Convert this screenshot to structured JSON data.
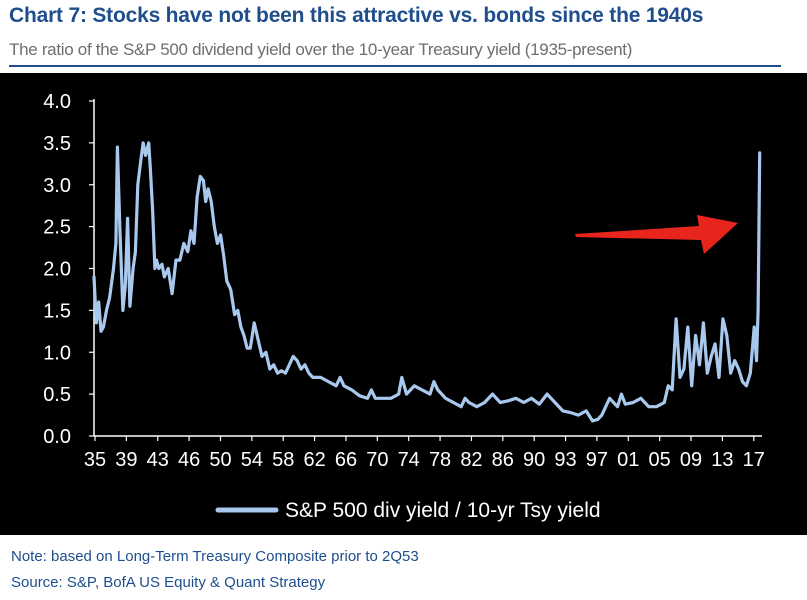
{
  "title": "Chart 7: Stocks have not been this attractive vs. bonds since the 1940s",
  "subtitle": "The ratio of the S&P 500 dividend yield over the 10-year Treasury yield (1935-present)",
  "notes": {
    "note": "Note: based on Long-Term Treasury Composite prior to 2Q53",
    "source": "Source: S&P, BofA US Equity & Quant Strategy"
  },
  "colors": {
    "background": "#000000",
    "series": "#a9c8ee",
    "arrow": "#e8251d",
    "title": "#1f4e8c"
  },
  "chart_data": {
    "type": "line",
    "title": "Chart 7: Stocks have not been this attractive vs. bonds since the 1940s",
    "xlabel": "",
    "ylabel": "",
    "xlim": [
      1935,
      2020.5
    ],
    "ylim": [
      0,
      4
    ],
    "y_ticks": [
      "0.0",
      "0.5",
      "1.0",
      "1.5",
      "2.0",
      "2.5",
      "3.0",
      "3.5",
      "4.0"
    ],
    "x_ticks": [
      "35",
      "39",
      "43",
      "46",
      "50",
      "54",
      "58",
      "62",
      "66",
      "70",
      "74",
      "78",
      "82",
      "86",
      "90",
      "93",
      "97",
      "01",
      "05",
      "09",
      "13",
      "17"
    ],
    "legend_position": "bottom",
    "annotation": "red arrow pointing to latest value",
    "series": [
      {
        "name": "S&P 500 div yield / 10-yr Tsy yield",
        "x": [
          1935,
          1935.3,
          1935.6,
          1935.9,
          1936.2,
          1936.6,
          1937,
          1937.5,
          1937.8,
          1938,
          1938.3,
          1938.7,
          1939,
          1939.3,
          1939.6,
          1940,
          1940.3,
          1940.6,
          1941,
          1941.3,
          1941.6,
          1942,
          1942.2,
          1942.5,
          1942.8,
          1943,
          1943.3,
          1943.7,
          1944,
          1944.5,
          1945,
          1945.5,
          1946,
          1946.5,
          1947,
          1947.4,
          1947.8,
          1948.2,
          1948.6,
          1949,
          1949.3,
          1949.6,
          1950,
          1950.4,
          1950.8,
          1951.2,
          1951.6,
          1952,
          1952.5,
          1953,
          1953.4,
          1953.8,
          1954.2,
          1954.6,
          1955,
          1955.5,
          1956,
          1956.5,
          1957,
          1957.5,
          1958,
          1958.5,
          1959,
          1959.5,
          1960,
          1960.5,
          1961,
          1961.5,
          1962,
          1962.5,
          1963,
          1964,
          1965,
          1966,
          1966.5,
          1967,
          1968,
          1969,
          1970,
          1970.5,
          1971,
          1972,
          1973,
          1974,
          1974.4,
          1975,
          1976,
          1977,
          1978,
          1978.5,
          1979,
          1980,
          1981,
          1982,
          1982.5,
          1983,
          1984,
          1985,
          1986,
          1987,
          1988,
          1989,
          1990,
          1991,
          1992,
          1993,
          1994,
          1995,
          1996,
          1997,
          1998,
          1998.8,
          1999.5,
          2000,
          2001,
          2002,
          2002.5,
          2003,
          2004,
          2005,
          2006,
          2007,
          2008,
          2008.5,
          2009,
          2009.5,
          2010,
          2010.5,
          2011,
          2011.5,
          2012,
          2012.5,
          2013,
          2013.5,
          2014,
          2014.5,
          2015,
          2015.5,
          2016,
          2016.5,
          2017,
          2017.5,
          2018,
          2018.5,
          2019,
          2019.5,
          2019.8,
          2020,
          2020.2
        ],
        "values": [
          1.9,
          1.35,
          1.6,
          1.25,
          1.3,
          1.5,
          1.65,
          2.0,
          2.3,
          3.45,
          2.5,
          1.5,
          1.8,
          2.6,
          1.55,
          2.0,
          2.2,
          3.0,
          3.3,
          3.5,
          3.35,
          3.5,
          3.2,
          2.7,
          2.0,
          2.1,
          2.0,
          2.05,
          1.9,
          2.0,
          1.7,
          2.1,
          2.1,
          2.3,
          2.2,
          2.45,
          2.3,
          2.85,
          3.1,
          3.05,
          2.8,
          2.95,
          2.8,
          2.5,
          2.3,
          2.4,
          2.15,
          1.85,
          1.75,
          1.45,
          1.5,
          1.3,
          1.2,
          1.05,
          1.05,
          1.35,
          1.15,
          0.95,
          1.0,
          0.8,
          0.85,
          0.75,
          0.78,
          0.75,
          0.85,
          0.95,
          0.9,
          0.8,
          0.85,
          0.75,
          0.7,
          0.7,
          0.65,
          0.6,
          0.7,
          0.6,
          0.55,
          0.48,
          0.45,
          0.55,
          0.45,
          0.45,
          0.45,
          0.5,
          0.7,
          0.5,
          0.6,
          0.55,
          0.5,
          0.65,
          0.55,
          0.45,
          0.4,
          0.35,
          0.45,
          0.4,
          0.35,
          0.4,
          0.5,
          0.4,
          0.42,
          0.45,
          0.4,
          0.45,
          0.38,
          0.5,
          0.4,
          0.3,
          0.28,
          0.25,
          0.3,
          0.18,
          0.2,
          0.25,
          0.45,
          0.35,
          0.5,
          0.38,
          0.4,
          0.45,
          0.35,
          0.35,
          0.4,
          0.6,
          0.55,
          1.4,
          0.7,
          0.8,
          1.3,
          0.6,
          1.2,
          0.85,
          1.35,
          0.75,
          0.95,
          1.1,
          0.7,
          1.4,
          1.2,
          0.75,
          0.9,
          0.8,
          0.65,
          0.6,
          0.75,
          1.3,
          0.9,
          1.5,
          3.38
        ]
      }
    ]
  }
}
